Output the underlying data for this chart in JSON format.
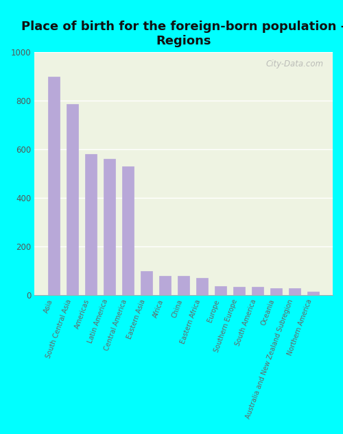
{
  "title": "Place of birth for the foreign-born population -\nRegions",
  "categories": [
    "Asia",
    "South Central Asia",
    "Americas",
    "Latin America",
    "Central America",
    "Eastern Asia",
    "Africa",
    "China",
    "Eastern Africa",
    "Europe",
    "Southern Europe",
    "South America",
    "Oceania",
    "Australia and New Zealand Subregion",
    "Northern America"
  ],
  "values": [
    900,
    785,
    580,
    562,
    530,
    100,
    80,
    78,
    70,
    38,
    33,
    33,
    28,
    28,
    15
  ],
  "bar_color": "#b8a8d8",
  "background_color_outer": "#00FFFF",
  "background_color_plot": "#eef3e2",
  "ylim": [
    0,
    1000
  ],
  "yticks": [
    0,
    200,
    400,
    600,
    800,
    1000
  ],
  "title_fontsize": 13,
  "tick_label_fontsize": 7,
  "ytick_fontsize": 8.5,
  "watermark": "City-Data.com"
}
